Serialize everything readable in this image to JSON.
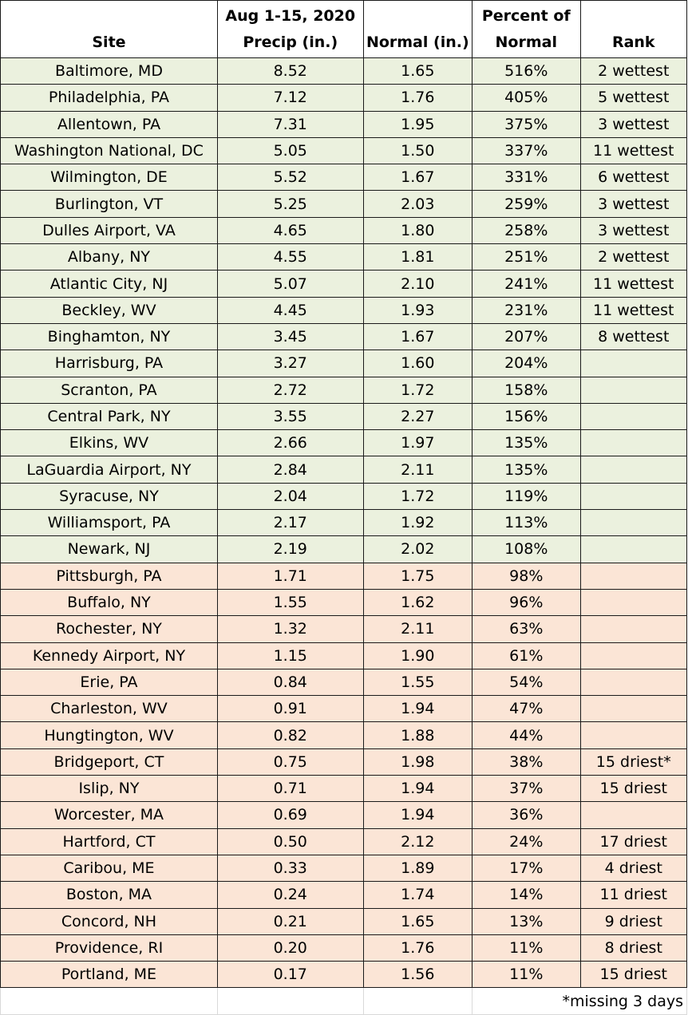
{
  "header": {
    "site": "Site",
    "precip_line1": "Aug 1-15, 2020",
    "precip_line2": "Precip (in.)",
    "normal": "Normal (in.)",
    "percent_line1": "Percent of",
    "percent_line2": "Normal",
    "rank": "Rank"
  },
  "colors": {
    "wet": "#ebf1de",
    "dry": "#fbe5d6"
  },
  "rows": [
    {
      "site": "Baltimore, MD",
      "precip": "8.52",
      "normal": "1.65",
      "percent": "516%",
      "rank": "2 wettest",
      "group": "wet"
    },
    {
      "site": "Philadelphia, PA",
      "precip": "7.12",
      "normal": "1.76",
      "percent": "405%",
      "rank": "5 wettest",
      "group": "wet"
    },
    {
      "site": "Allentown, PA",
      "precip": "7.31",
      "normal": "1.95",
      "percent": "375%",
      "rank": "3 wettest",
      "group": "wet"
    },
    {
      "site": "Washington National, DC",
      "precip": "5.05",
      "normal": "1.50",
      "percent": "337%",
      "rank": "11 wettest",
      "group": "wet"
    },
    {
      "site": "Wilmington, DE",
      "precip": "5.52",
      "normal": "1.67",
      "percent": "331%",
      "rank": "6 wettest",
      "group": "wet"
    },
    {
      "site": "Burlington, VT",
      "precip": "5.25",
      "normal": "2.03",
      "percent": "259%",
      "rank": "3 wettest",
      "group": "wet"
    },
    {
      "site": "Dulles Airport, VA",
      "precip": "4.65",
      "normal": "1.80",
      "percent": "258%",
      "rank": "3 wettest",
      "group": "wet"
    },
    {
      "site": "Albany, NY",
      "precip": "4.55",
      "normal": "1.81",
      "percent": "251%",
      "rank": "2 wettest",
      "group": "wet"
    },
    {
      "site": "Atlantic City, NJ",
      "precip": "5.07",
      "normal": "2.10",
      "percent": "241%",
      "rank": "11 wettest",
      "group": "wet"
    },
    {
      "site": "Beckley, WV",
      "precip": "4.45",
      "normal": "1.93",
      "percent": "231%",
      "rank": "11 wettest",
      "group": "wet"
    },
    {
      "site": "Binghamton, NY",
      "precip": "3.45",
      "normal": "1.67",
      "percent": "207%",
      "rank": "8 wettest",
      "group": "wet"
    },
    {
      "site": "Harrisburg, PA",
      "precip": "3.27",
      "normal": "1.60",
      "percent": "204%",
      "rank": "",
      "group": "wet"
    },
    {
      "site": "Scranton, PA",
      "precip": "2.72",
      "normal": "1.72",
      "percent": "158%",
      "rank": "",
      "group": "wet"
    },
    {
      "site": "Central Park, NY",
      "precip": "3.55",
      "normal": "2.27",
      "percent": "156%",
      "rank": "",
      "group": "wet"
    },
    {
      "site": "Elkins, WV",
      "precip": "2.66",
      "normal": "1.97",
      "percent": "135%",
      "rank": "",
      "group": "wet"
    },
    {
      "site": "LaGuardia Airport, NY",
      "precip": "2.84",
      "normal": "2.11",
      "percent": "135%",
      "rank": "",
      "group": "wet"
    },
    {
      "site": "Syracuse, NY",
      "precip": "2.04",
      "normal": "1.72",
      "percent": "119%",
      "rank": "",
      "group": "wet"
    },
    {
      "site": "Williamsport, PA",
      "precip": "2.17",
      "normal": "1.92",
      "percent": "113%",
      "rank": "",
      "group": "wet"
    },
    {
      "site": "Newark, NJ",
      "precip": "2.19",
      "normal": "2.02",
      "percent": "108%",
      "rank": "",
      "group": "wet"
    },
    {
      "site": "Pittsburgh, PA",
      "precip": "1.71",
      "normal": "1.75",
      "percent": "98%",
      "rank": "",
      "group": "dry"
    },
    {
      "site": "Buffalo, NY",
      "precip": "1.55",
      "normal": "1.62",
      "percent": "96%",
      "rank": "",
      "group": "dry"
    },
    {
      "site": "Rochester, NY",
      "precip": "1.32",
      "normal": "2.11",
      "percent": "63%",
      "rank": "",
      "group": "dry"
    },
    {
      "site": "Kennedy Airport, NY",
      "precip": "1.15",
      "normal": "1.90",
      "percent": "61%",
      "rank": "",
      "group": "dry"
    },
    {
      "site": "Erie, PA",
      "precip": "0.84",
      "normal": "1.55",
      "percent": "54%",
      "rank": "",
      "group": "dry"
    },
    {
      "site": "Charleston, WV",
      "precip": "0.91",
      "normal": "1.94",
      "percent": "47%",
      "rank": "",
      "group": "dry"
    },
    {
      "site": "Hungtington, WV",
      "precip": "0.82",
      "normal": "1.88",
      "percent": "44%",
      "rank": "",
      "group": "dry"
    },
    {
      "site": "Bridgeport, CT",
      "precip": "0.75",
      "normal": "1.98",
      "percent": "38%",
      "rank": "15 driest*",
      "group": "dry"
    },
    {
      "site": "Islip, NY",
      "precip": "0.71",
      "normal": "1.94",
      "percent": "37%",
      "rank": "15 driest",
      "group": "dry"
    },
    {
      "site": "Worcester, MA",
      "precip": "0.69",
      "normal": "1.94",
      "percent": "36%",
      "rank": "",
      "group": "dry"
    },
    {
      "site": "Hartford, CT",
      "precip": "0.50",
      "normal": "2.12",
      "percent": "24%",
      "rank": "17 driest",
      "group": "dry"
    },
    {
      "site": "Caribou, ME",
      "precip": "0.33",
      "normal": "1.89",
      "percent": "17%",
      "rank": "4 driest",
      "group": "dry"
    },
    {
      "site": "Boston, MA",
      "precip": "0.24",
      "normal": "1.74",
      "percent": "14%",
      "rank": "11 driest",
      "group": "dry"
    },
    {
      "site": "Concord, NH",
      "precip": "0.21",
      "normal": "1.65",
      "percent": "13%",
      "rank": "9 driest",
      "group": "dry"
    },
    {
      "site": "Providence, RI",
      "precip": "0.20",
      "normal": "1.76",
      "percent": "11%",
      "rank": "8 driest",
      "group": "dry"
    },
    {
      "site": "Portland, ME",
      "precip": "0.17",
      "normal": "1.56",
      "percent": "11%",
      "rank": "15 driest",
      "group": "dry"
    }
  ],
  "footnote": "*missing 3 days"
}
